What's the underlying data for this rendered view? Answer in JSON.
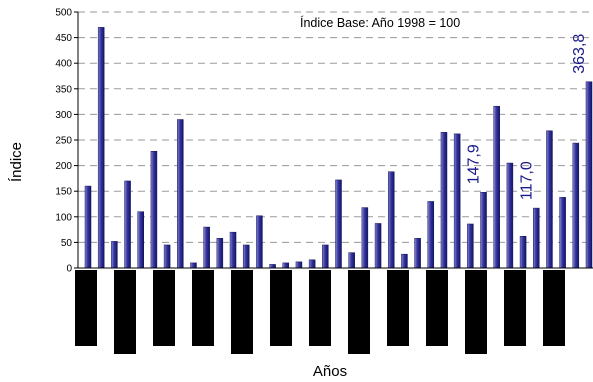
{
  "chart_data": {
    "type": "bar",
    "title": "",
    "annotation": "Índice Base: Año 1998 = 100",
    "xlabel": "Años",
    "ylabel": "Índice",
    "ylim": [
      0,
      500
    ],
    "yticks": [
      0,
      50,
      100,
      150,
      200,
      250,
      300,
      350,
      400,
      450,
      500
    ],
    "grid": true,
    "bar_color": "#2b2b8f",
    "values": [
      160,
      470,
      52,
      170,
      110,
      228,
      45,
      290,
      10,
      80,
      58,
      70,
      45,
      102,
      7,
      10,
      12,
      16,
      45,
      172,
      30,
      118,
      87,
      188,
      27,
      58,
      130,
      265,
      262,
      86,
      147.9,
      316,
      205,
      62,
      117.0,
      268,
      138,
      244,
      363.8
    ],
    "data_labels": [
      {
        "index": 30,
        "text": "147,9"
      },
      {
        "index": 34,
        "text": "117,0"
      },
      {
        "index": 38,
        "text": "363,8"
      }
    ]
  }
}
